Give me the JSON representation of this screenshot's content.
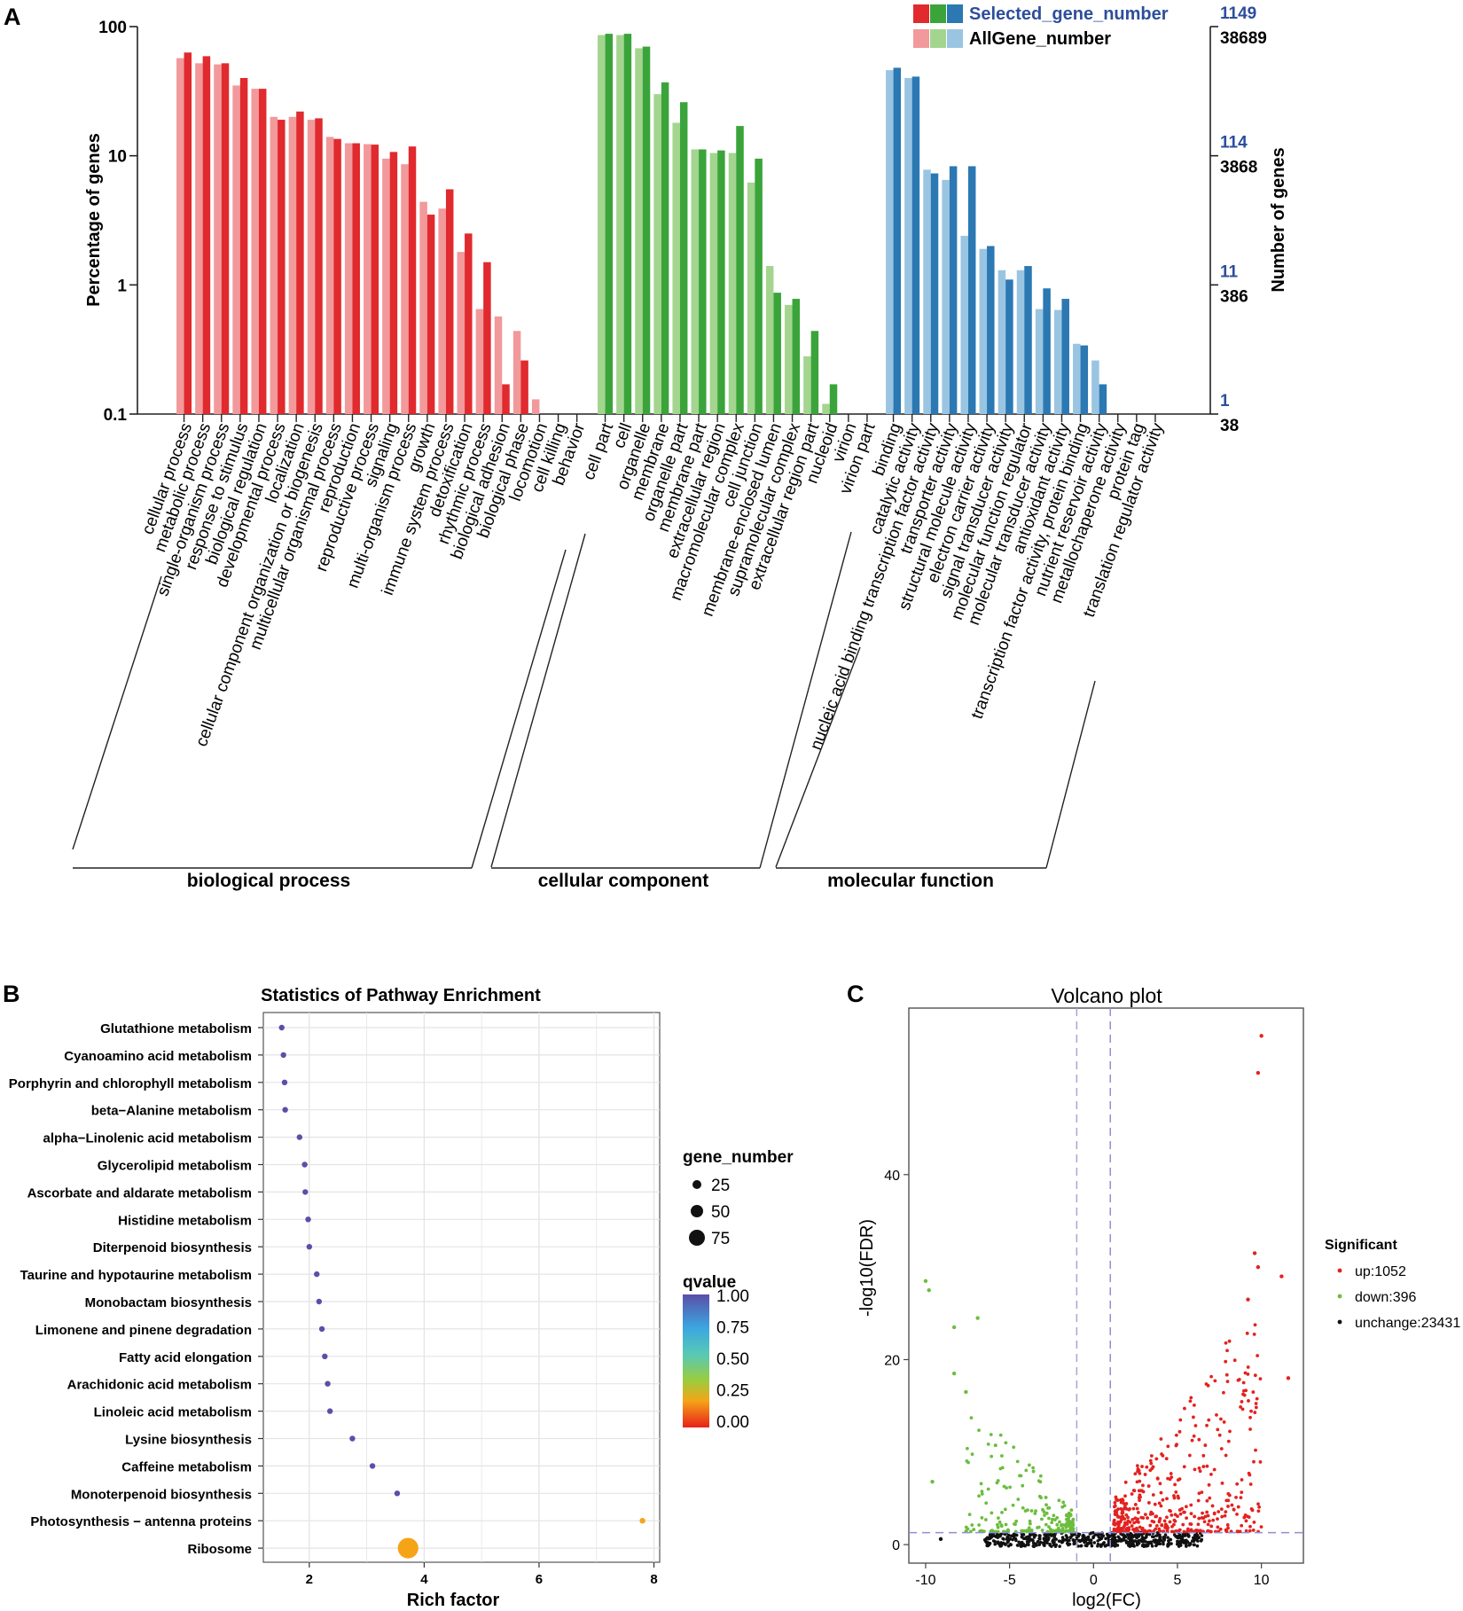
{
  "panel_labels": {
    "a": "A",
    "b": "B",
    "c": "C"
  },
  "colors": {
    "bp_selected": "#e02a2e",
    "bp_all": "#f2999b",
    "cc_selected": "#3aa43a",
    "cc_all": "#a3d58f",
    "mf_selected": "#2b78b3",
    "mf_all": "#9ac5e2",
    "blue_text": "#2d4e9c",
    "up": "#e3221f",
    "down": "#6cbd3f",
    "unchange": "#111111"
  },
  "chart_data": [
    {
      "type": "bar",
      "panel": "A",
      "title": "",
      "ylabel": "Percentage of genes",
      "ylabel_right": "Number of genes",
      "yscale": "log",
      "ylim": [
        0.1,
        100
      ],
      "yticks": [
        "100",
        "10",
        "1",
        "0.1"
      ],
      "right_ticks_selected": [
        "1149",
        "114",
        "11",
        "1"
      ],
      "right_ticks_all": [
        "38689",
        "3868",
        "386",
        "38"
      ],
      "legend": {
        "selected": "Selected_gene_number",
        "all": "AllGene_number"
      },
      "groups": [
        {
          "name": "biological process",
          "categories": [
            "cellular process",
            "metabolic process",
            "single-organism process",
            "response to stimulus",
            "biological regulation",
            "developmental process",
            "localization",
            "cellular component organization or biogenesis",
            "multicellular organismal process",
            "reproduction",
            "reproductive process",
            "signaling",
            "multi-organism process",
            "growth",
            "immune system process",
            "detoxification",
            "rhythmic process",
            "biological adhesion",
            "biological phase",
            "locomotion",
            "cell killing",
            "behavior"
          ],
          "all": [
            57,
            52,
            51,
            35,
            33,
            20,
            20,
            19,
            14,
            12.5,
            12.3,
            9.5,
            8.6,
            4.4,
            3.9,
            1.8,
            0.65,
            0.57,
            0.44,
            0.13,
            null,
            null
          ],
          "selected": [
            63,
            59,
            52,
            40,
            33,
            19,
            22,
            19.5,
            13.5,
            12.5,
            12.2,
            10.7,
            11.8,
            3.5,
            5.5,
            2.5,
            1.5,
            0.17,
            0.26,
            null,
            null,
            null
          ]
        },
        {
          "name": "cellular component",
          "categories": [
            "cell part",
            "cell",
            "organelle",
            "membrane",
            "organelle part",
            "membrane part",
            "extracellular region",
            "macromolecular complex",
            "cell junction",
            "membrane-enclosed lumen",
            "supramolecular complex",
            "extracellular region part",
            "nucleoid",
            "virion",
            "virion part"
          ],
          "all": [
            86,
            86,
            68,
            30,
            18,
            11.2,
            10.5,
            10.5,
            6.2,
            1.4,
            0.7,
            0.28,
            0.12,
            null,
            null
          ],
          "selected": [
            88,
            88,
            70,
            37,
            26,
            11.2,
            11,
            17,
            9.5,
            0.87,
            0.78,
            0.44,
            0.17,
            null,
            null
          ]
        },
        {
          "name": "molecular function",
          "categories": [
            "binding",
            "catalytic activity",
            "nucleic acid binding transcription factor activity",
            "transporter activity",
            "structural molecule activity",
            "electron carrier activity",
            "signal transducer activity",
            "molecular function regulator",
            "molecular transducer activity",
            "antioxidant activity",
            "transcription factor activity, protein binding",
            "nutrient reservoir activity",
            "metallochaperone activity",
            "protein tag",
            "translation regulator activity"
          ],
          "all": [
            46,
            40,
            7.8,
            6.5,
            2.4,
            1.9,
            1.3,
            1.3,
            0.65,
            0.64,
            0.35,
            0.26,
            null,
            null,
            null
          ],
          "selected": [
            48,
            41,
            7.3,
            8.3,
            8.3,
            2.0,
            1.1,
            1.4,
            0.94,
            0.78,
            0.34,
            0.17,
            null,
            null,
            null
          ]
        }
      ]
    },
    {
      "type": "scatter",
      "panel": "B",
      "title": "Statistics of Pathway Enrichment",
      "xlabel": "Rich factor",
      "ylabel": "",
      "xlim": [
        1.2,
        8.1
      ],
      "xticks": [
        2,
        4,
        6,
        8
      ],
      "size_legend": {
        "title": "gene_number",
        "values": [
          25,
          50,
          75
        ]
      },
      "color_legend": {
        "title": "qvalue",
        "ticks": [
          "1.00",
          "0.75",
          "0.50",
          "0.25",
          "0.00"
        ]
      },
      "points": [
        {
          "pathway": "Glutathione metabolism",
          "rich_factor": 1.52,
          "gene_number": 3,
          "qvalue": 1.0
        },
        {
          "pathway": "Cyanoamino acid metabolism",
          "rich_factor": 1.55,
          "gene_number": 3,
          "qvalue": 1.0
        },
        {
          "pathway": "Porphyrin and chlorophyll metabolism",
          "rich_factor": 1.57,
          "gene_number": 3,
          "qvalue": 1.0
        },
        {
          "pathway": "beta−Alanine metabolism",
          "rich_factor": 1.58,
          "gene_number": 3,
          "qvalue": 1.0
        },
        {
          "pathway": "alpha−Linolenic acid metabolism",
          "rich_factor": 1.83,
          "gene_number": 3,
          "qvalue": 1.0
        },
        {
          "pathway": "Glycerolipid metabolism",
          "rich_factor": 1.92,
          "gene_number": 5,
          "qvalue": 1.0
        },
        {
          "pathway": "Ascorbate and aldarate metabolism",
          "rich_factor": 1.93,
          "gene_number": 3,
          "qvalue": 1.0
        },
        {
          "pathway": "Histidine metabolism",
          "rich_factor": 1.98,
          "gene_number": 2,
          "qvalue": 1.0
        },
        {
          "pathway": "Diterpenoid biosynthesis",
          "rich_factor": 2.0,
          "gene_number": 3,
          "qvalue": 1.0
        },
        {
          "pathway": "Taurine and hypotaurine metabolism",
          "rich_factor": 2.13,
          "gene_number": 2,
          "qvalue": 1.0
        },
        {
          "pathway": "Monobactam biosynthesis",
          "rich_factor": 2.17,
          "gene_number": 2,
          "qvalue": 1.0
        },
        {
          "pathway": "Limonene and pinene degradation",
          "rich_factor": 2.22,
          "gene_number": 4,
          "qvalue": 1.0
        },
        {
          "pathway": "Fatty acid elongation",
          "rich_factor": 2.27,
          "gene_number": 3,
          "qvalue": 1.0
        },
        {
          "pathway": "Arachidonic acid metabolism",
          "rich_factor": 2.32,
          "gene_number": 2,
          "qvalue": 1.0
        },
        {
          "pathway": "Linoleic acid metabolism",
          "rich_factor": 2.36,
          "gene_number": 2,
          "qvalue": 1.0
        },
        {
          "pathway": "Lysine biosynthesis",
          "rich_factor": 2.75,
          "gene_number": 2,
          "qvalue": 1.0
        },
        {
          "pathway": "Caffeine metabolism",
          "rich_factor": 3.1,
          "gene_number": 1,
          "qvalue": 1.0
        },
        {
          "pathway": "Monoterpenoid biosynthesis",
          "rich_factor": 3.53,
          "gene_number": 1,
          "qvalue": 1.0
        },
        {
          "pathway": "Photosynthesis − antenna proteins",
          "rich_factor": 7.8,
          "gene_number": 4,
          "qvalue": 0.0
        },
        {
          "pathway": "Ribosome",
          "rich_factor": 3.72,
          "gene_number": 82,
          "qvalue": 0.0
        }
      ]
    },
    {
      "type": "scatter",
      "panel": "C",
      "title": "Volcano plot",
      "xlabel": "log2(FC)",
      "ylabel": "-log10(FDR)",
      "xlim": [
        -11,
        12.5
      ],
      "ylim": [
        -2,
        58
      ],
      "xticks": [
        -10,
        -5,
        0,
        5,
        10
      ],
      "yticks": [
        0,
        20,
        40
      ],
      "thresholds": {
        "log2fc": [
          -1,
          1
        ],
        "neg_log10_fdr": 1.3
      },
      "legend_title": "Significant",
      "legend": [
        {
          "key": "up",
          "label": "up:1052"
        },
        {
          "key": "down",
          "label": "down:396"
        },
        {
          "key": "unchange",
          "label": "unchange:23431"
        }
      ],
      "notable_points": [
        {
          "x": 10.0,
          "y": 55,
          "group": "up"
        },
        {
          "x": 9.8,
          "y": 51,
          "group": "up"
        },
        {
          "x": 9.6,
          "y": 31.5,
          "group": "up"
        },
        {
          "x": 9.8,
          "y": 30,
          "group": "up"
        },
        {
          "x": 11.2,
          "y": 29,
          "group": "up"
        },
        {
          "x": 11.6,
          "y": 18,
          "group": "up"
        },
        {
          "x": 9.2,
          "y": 26.5,
          "group": "up"
        },
        {
          "x": -10.0,
          "y": 28.5,
          "group": "down"
        },
        {
          "x": -9.8,
          "y": 27.5,
          "group": "down"
        },
        {
          "x": -8.3,
          "y": 23.5,
          "group": "down"
        },
        {
          "x": -6.9,
          "y": 24.5,
          "group": "down"
        },
        {
          "x": -8.3,
          "y": 18.5,
          "group": "down"
        },
        {
          "x": -7.6,
          "y": 16.5,
          "group": "down"
        },
        {
          "x": -9.6,
          "y": 6.8,
          "group": "down"
        },
        {
          "x": -9.1,
          "y": 0.6,
          "group": "unchange"
        }
      ]
    }
  ]
}
